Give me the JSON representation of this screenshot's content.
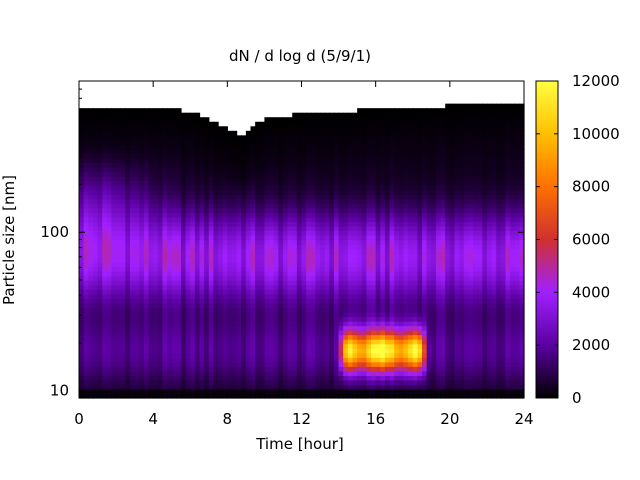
{
  "chart_data": {
    "type": "heatmap",
    "title": "dN / d log d (5/9/1)",
    "xlabel": "Time [hour]",
    "ylabel": "Particle size [nm]",
    "xlim": [
      0,
      24
    ],
    "ylim": [
      9,
      900
    ],
    "y_scale": "log",
    "x_ticks": [
      0,
      4,
      8,
      12,
      16,
      20,
      24
    ],
    "y_tick_labels": [
      "10",
      "100"
    ],
    "colorbar": {
      "range": [
        0,
        12000
      ],
      "ticks": [
        0,
        2000,
        4000,
        6000,
        8000,
        10000,
        12000
      ],
      "palette": [
        "#000000",
        "#5a00a0",
        "#a020ff",
        "#d03030",
        "#ff7000",
        "#ffc000",
        "#ffff40"
      ]
    },
    "upper_edge_nm": [
      [
        0,
        600
      ],
      [
        2,
        580
      ],
      [
        4,
        600
      ],
      [
        6,
        560
      ],
      [
        8,
        440
      ],
      [
        8.8,
        380
      ],
      [
        10,
        510
      ],
      [
        12,
        540
      ],
      [
        14,
        560
      ],
      [
        16,
        580
      ],
      [
        18,
        600
      ],
      [
        20,
        610
      ],
      [
        22,
        640
      ],
      [
        24,
        650
      ]
    ],
    "features": [
      {
        "description": "persistent mode",
        "diameter_nm": 70,
        "level": 3500
      },
      {
        "description": "growth burst",
        "time_h": [
          14.2,
          18.6
        ],
        "diameter_nm": 18,
        "level": 11000
      }
    ],
    "grid": false
  }
}
